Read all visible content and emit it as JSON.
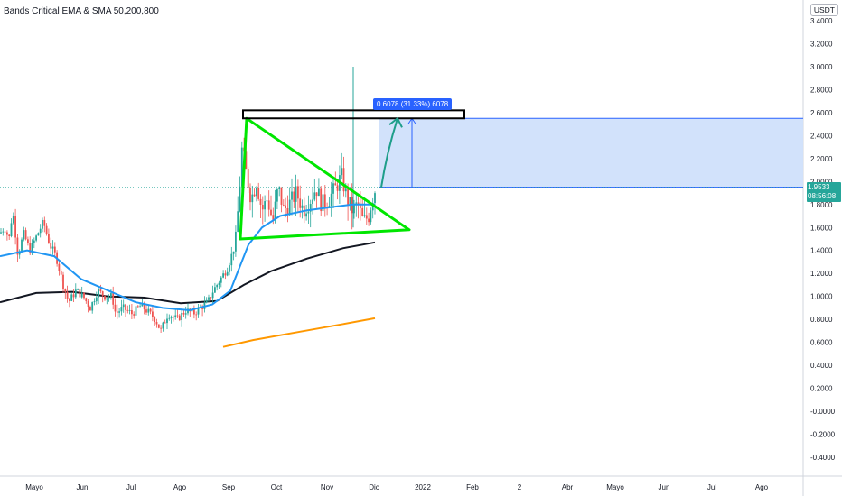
{
  "indicator_title": "Bands Critical EMA & SMA 50,200,800",
  "currency": "USDT",
  "current_price": "1.9533",
  "countdown": "08:56:08",
  "measure_text": "0.6078 (31.33%) 6078",
  "colors": {
    "bull": "#26a69a",
    "bear": "#ef5350",
    "ema50": "#2196f3",
    "sma200": "#131722",
    "sma800": "#ff9800",
    "triangle": "#00e600",
    "target_fill": "#d0e0fb",
    "target_border": "#2962ff",
    "arrow": "#1e9e8a"
  },
  "chart_data": {
    "type": "candlestick",
    "title": "Bands Critical EMA & SMA 50,200,800",
    "y_axis_ticks": [
      "3.4000",
      "3.2000",
      "3.0000",
      "2.8000",
      "2.6000",
      "2.4000",
      "2.2000",
      "2.0000",
      "1.8000",
      "1.6000",
      "1.4000",
      "1.2000",
      "1.0000",
      "0.8000",
      "0.6000",
      "0.4000",
      "0.2000",
      "-0.0000",
      "-0.2000",
      "-0.4000"
    ],
    "x_axis_ticks": [
      "Mayo",
      "Jun",
      "Jul",
      "Ago",
      "Sep",
      "Oct",
      "Nov",
      "Dic",
      "2022",
      "Feb",
      "2",
      "Abr",
      "Mayo",
      "Jun",
      "Jul",
      "Ago"
    ],
    "ylim": [
      -0.5,
      3.5
    ],
    "price_path": [
      [
        0,
        1.55
      ],
      [
        5,
        1.6
      ],
      [
        10,
        1.5
      ],
      [
        14,
        1.75
      ],
      [
        20,
        1.35
      ],
      [
        26,
        1.55
      ],
      [
        33,
        1.4
      ],
      [
        42,
        1.55
      ],
      [
        48,
        1.65
      ],
      [
        55,
        1.45
      ],
      [
        62,
        1.35
      ],
      [
        70,
        1.1
      ],
      [
        76,
        0.95
      ],
      [
        84,
        1.05
      ],
      [
        92,
        1.0
      ],
      [
        100,
        0.9
      ],
      [
        108,
        1.05
      ],
      [
        116,
        1.0
      ],
      [
        124,
        1.0
      ],
      [
        128,
        0.85
      ],
      [
        136,
        0.9
      ],
      [
        146,
        0.85
      ],
      [
        156,
        0.92
      ],
      [
        166,
        0.85
      ],
      [
        172,
        0.8
      ],
      [
        178,
        0.7
      ],
      [
        186,
        0.85
      ],
      [
        196,
        0.8
      ],
      [
        206,
        0.88
      ],
      [
        214,
        0.85
      ],
      [
        222,
        0.9
      ],
      [
        230,
        0.95
      ],
      [
        236,
        1.05
      ],
      [
        244,
        1.15
      ],
      [
        252,
        1.25
      ],
      [
        260,
        1.45
      ],
      [
        264,
        1.8
      ],
      [
        268,
        2.3
      ],
      [
        272,
        2.1
      ],
      [
        278,
        1.85
      ],
      [
        284,
        2.0
      ],
      [
        290,
        1.75
      ],
      [
        296,
        1.85
      ],
      [
        302,
        1.65
      ],
      [
        308,
        1.95
      ],
      [
        314,
        1.75
      ],
      [
        320,
        1.8
      ],
      [
        328,
        1.9
      ],
      [
        336,
        1.75
      ],
      [
        344,
        1.85
      ],
      [
        350,
        1.95
      ],
      [
        356,
        1.8
      ],
      [
        364,
        1.85
      ],
      [
        372,
        1.95
      ],
      [
        378,
        2.05
      ],
      [
        384,
        1.85
      ],
      [
        390,
        1.75
      ],
      [
        396,
        1.8
      ],
      [
        402,
        1.65
      ],
      [
        408,
        1.7
      ],
      [
        412,
        1.85
      ],
      [
        416,
        1.95
      ]
    ],
    "ema50": [
      [
        0,
        1.35
      ],
      [
        30,
        1.4
      ],
      [
        60,
        1.35
      ],
      [
        90,
        1.15
      ],
      [
        120,
        1.05
      ],
      [
        150,
        0.95
      ],
      [
        180,
        0.9
      ],
      [
        210,
        0.88
      ],
      [
        235,
        0.93
      ],
      [
        255,
        1.05
      ],
      [
        265,
        1.25
      ],
      [
        275,
        1.45
      ],
      [
        290,
        1.6
      ],
      [
        310,
        1.7
      ],
      [
        340,
        1.75
      ],
      [
        370,
        1.78
      ],
      [
        390,
        1.8
      ],
      [
        415,
        1.8
      ]
    ],
    "sma200": [
      [
        0,
        0.95
      ],
      [
        40,
        1.03
      ],
      [
        80,
        1.04
      ],
      [
        120,
        1.0
      ],
      [
        160,
        0.99
      ],
      [
        200,
        0.94
      ],
      [
        240,
        0.96
      ],
      [
        270,
        1.1
      ],
      [
        300,
        1.22
      ],
      [
        340,
        1.33
      ],
      [
        380,
        1.42
      ],
      [
        415,
        1.47
      ]
    ],
    "sma800": [
      [
        247,
        0.56
      ],
      [
        280,
        0.62
      ],
      [
        330,
        0.69
      ],
      [
        380,
        0.76
      ],
      [
        415,
        0.81
      ]
    ],
    "triangle": {
      "apex_high": [
        273,
        2.55
      ],
      "apex_tip": [
        453,
        1.58
      ],
      "base_low": [
        266,
        1.5
      ]
    },
    "target_box": {
      "x_from": 420,
      "y_from": 1.95,
      "y_to": 2.55
    },
    "spike": {
      "x": 391,
      "high": 3.0,
      "low": 1.6
    },
    "arrow": {
      "from": [
        422,
        1.95
      ],
      "to": [
        440,
        2.55
      ]
    },
    "resistance_rect": {
      "x1": 269,
      "x2": 514,
      "y_low": 2.55,
      "y_high": 2.62
    }
  }
}
